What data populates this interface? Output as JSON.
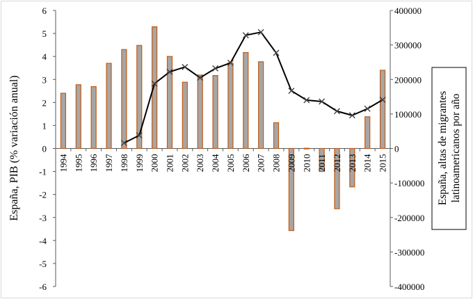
{
  "chart_data": {
    "type": "bar+line",
    "title": "",
    "categories": [
      "1994",
      "1995",
      "1996",
      "1997",
      "1998",
      "1999",
      "2000",
      "2001",
      "2002",
      "2003",
      "2004",
      "2005",
      "2006",
      "2007",
      "2008",
      "2009",
      "2010",
      "2011",
      "2012",
      "2013",
      "2014",
      "2015"
    ],
    "ylabel_left": "España,  PIB (% variación anual)",
    "ylabel_right_line1": "España, altas de migrantes",
    "ylabel_right_line2": "latinoamericanos por año",
    "yticks_left": [
      "6",
      "5",
      "4",
      "3",
      "2",
      "1",
      "0",
      "-1",
      "-2",
      "-3",
      "-4",
      "-5",
      "-6"
    ],
    "yticks_right": [
      "400000",
      "300000",
      "200000",
      "100000",
      "0",
      "-100000",
      "-200000",
      "-300000",
      "-400000"
    ],
    "ylim_left": [
      -6,
      6
    ],
    "ylim_right": [
      -400000,
      400000
    ],
    "grid": false,
    "series": [
      {
        "axis": "left",
        "kind": "bar",
        "values": [
          2.4,
          2.77,
          2.69,
          3.7,
          4.3,
          4.48,
          5.29,
          4.0,
          2.88,
          3.19,
          3.17,
          3.72,
          4.17,
          3.77,
          1.12,
          -3.57,
          0.01,
          -1.0,
          -2.62,
          -1.67,
          1.38,
          3.4
        ]
      },
      {
        "axis": "right",
        "kind": "line",
        "values": [
          null,
          null,
          null,
          null,
          16000,
          38000,
          188000,
          222000,
          236000,
          205000,
          232000,
          248000,
          328000,
          337000,
          277000,
          167000,
          140000,
          136000,
          108000,
          96000,
          115000,
          141000
        ]
      }
    ],
    "colors": {
      "bar_fill": "#a6a6a6",
      "bar_stroke": "#c55a11",
      "line": "#000000"
    }
  }
}
